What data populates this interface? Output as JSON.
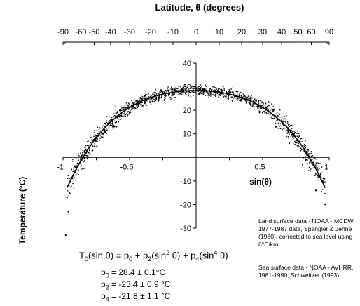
{
  "chart_data": {
    "type": "scatter",
    "title": "Latitude, θ (degrees)",
    "xlabel": "sin(θ)",
    "ylabel": "Temperature (°C)",
    "x_range": [
      -1,
      1
    ],
    "ylim": [
      -30,
      40
    ],
    "x_ticks": [
      {
        "value": -1,
        "label": "-1"
      },
      {
        "value": -0.5,
        "label": "-0.5"
      },
      {
        "value": 0.5,
        "label": "0.5"
      },
      {
        "value": 1,
        "label": "1"
      }
    ],
    "y_ticks": [
      "40",
      "30",
      "20",
      "10",
      "-10",
      "-20",
      "-30"
    ],
    "top_axis_label": "Latitude, θ (degrees)",
    "top_ticks": [
      "-90",
      "-60",
      "-50",
      "-40",
      "-30",
      "-20",
      "-10",
      "0",
      "10",
      "20",
      "30",
      "40",
      "50",
      "60",
      "90"
    ],
    "top_tick_degrees": [
      -90,
      -60,
      -50,
      -40,
      -30,
      -20,
      -10,
      0,
      10,
      20,
      30,
      40,
      50,
      60,
      90
    ],
    "grid": false,
    "fit": {
      "p0": 28.4,
      "p2": -23.4,
      "p4": -21.8
    },
    "data_description_points_approx": [
      [
        -0.97,
        -17
      ],
      [
        -0.96,
        -23
      ],
      [
        -0.98,
        -33
      ],
      [
        -0.9,
        -5
      ],
      [
        -0.8,
        3
      ],
      [
        -0.7,
        10
      ],
      [
        -0.6,
        15
      ],
      [
        -0.5,
        19
      ],
      [
        -0.4,
        22
      ],
      [
        -0.3,
        25
      ],
      [
        -0.2,
        27
      ],
      [
        -0.1,
        28
      ],
      [
        0,
        28.5
      ],
      [
        0.1,
        28.2
      ],
      [
        0.2,
        27.5
      ],
      [
        0.3,
        26
      ],
      [
        0.4,
        23
      ],
      [
        0.5,
        19
      ],
      [
        0.6,
        13
      ],
      [
        0.7,
        6
      ],
      [
        0.8,
        -3
      ],
      [
        0.9,
        -14
      ],
      [
        0.97,
        -20
      ]
    ]
  },
  "formula": {
    "lhs": "T",
    "lhs_sub": "0",
    "lhs_arg": "(sin θ)",
    "eq": " = p",
    "s0": "0",
    "plus1": " + p",
    "s2": "2",
    "mid1": "(sin",
    "sup2": "2",
    "mid1b": " θ) + p",
    "s4": "4",
    "mid2": "(sin",
    "sup4": "4",
    "mid2b": " θ)"
  },
  "params": [
    {
      "name": "p",
      "sub": "0",
      "value": " = 28.4 ± 0.1°C"
    },
    {
      "name": "p",
      "sub": "2",
      "value": " = -23.4 ± 0.9 °C"
    },
    {
      "name": "p",
      "sub": "4",
      "value": " = -21.8 ± 1.1 °C"
    }
  ],
  "notes": {
    "land": "Land surface data - NOAA - MCDW, 1977-1987 data, Spangler & Jenne (1980), corrected to sea level using 6°C/km",
    "sea": "Sea surface data - NOAA - AVHRR, 1981-1990, Schweitzer (1993)"
  }
}
